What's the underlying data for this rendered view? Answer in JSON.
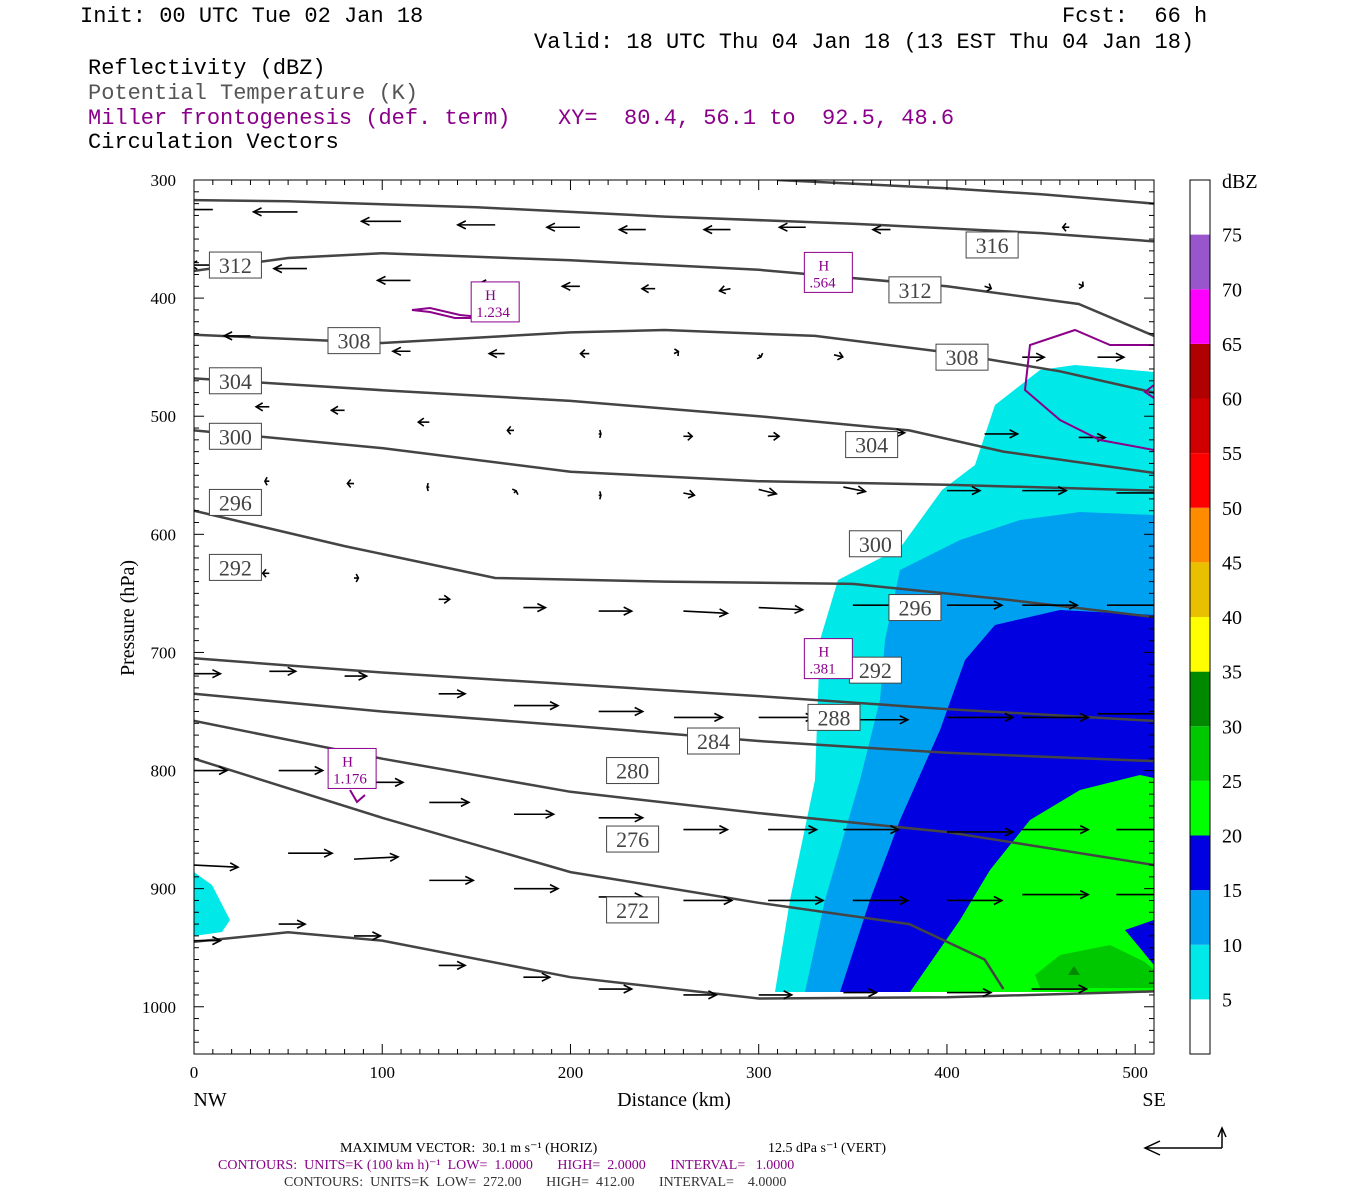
{
  "header": {
    "init": "Init: 00 UTC Tue 02 Jan 18",
    "fcst": "Fcst:  66 h",
    "valid": "Valid: 18 UTC Thu 04 Jan 18 (13 EST Thu 04 Jan 18)",
    "field1": "Reflectivity (dBZ)",
    "field2": "Potential Temperature (K)",
    "field3": "Miller frontogenesis (def. term)",
    "xy": "XY=  80.4, 56.1 to  92.5, 48.6",
    "field4": "Circulation Vectors"
  },
  "colors": {
    "theta": "#444444",
    "fronto": "#8a008a",
    "dbz": [
      "#ffffff",
      "#00e8e8",
      "#00a0f0",
      "#0000e0",
      "#00ff00",
      "#00c800",
      "#008800",
      "#ffff00",
      "#e8c000",
      "#ff8c00",
      "#ff0000",
      "#d00000",
      "#b00000",
      "#ff00ff",
      "#9955cc"
    ]
  },
  "chart_data": {
    "type": "cross-section",
    "xlabel": "Distance (km)",
    "ylabel": "Pressure (hPa)",
    "xlim": [
      0,
      510
    ],
    "ylim": [
      1040,
      300
    ],
    "xticks": [
      0,
      100,
      200,
      300,
      400,
      500
    ],
    "xtick_labels": [
      "0",
      "100",
      "200",
      "300",
      "400",
      "500"
    ],
    "yticks": [
      300,
      400,
      500,
      600,
      700,
      800,
      900,
      1000
    ],
    "ytick_labels": [
      "300",
      "400",
      "500",
      "600",
      "700",
      "800",
      "900",
      "1000"
    ],
    "x_end_labels": {
      "left": "NW",
      "right": "SE"
    },
    "theta_contours": [
      {
        "label": "316",
        "label_at": [
          424,
          355
        ],
        "pts": [
          [
            310,
            300
          ],
          [
            400,
            307
          ],
          [
            450,
            312
          ],
          [
            510,
            320
          ]
        ]
      },
      {
        "label": "312",
        "label_at": [
          22,
          372
        ],
        "pts": [
          [
            0,
            317
          ],
          [
            50,
            318
          ],
          [
            150,
            323
          ],
          [
            250,
            331
          ],
          [
            350,
            337
          ],
          [
            450,
            345
          ],
          [
            510,
            352
          ]
        ]
      },
      {
        "label": "312",
        "label_at": [
          383,
          393
        ],
        "pts": [
          [
            0,
            377
          ],
          [
            50,
            366
          ],
          [
            100,
            362
          ],
          [
            200,
            368
          ],
          [
            300,
            376
          ],
          [
            400,
            390
          ],
          [
            470,
            405
          ],
          [
            510,
            432
          ]
        ]
      },
      {
        "label": "308",
        "label_at": [
          85,
          436
        ],
        "pts": [
          [
            0,
            431
          ],
          [
            100,
            438
          ],
          [
            200,
            429
          ],
          [
            250,
            427
          ],
          [
            330,
            432
          ],
          [
            400,
            446
          ],
          [
            460,
            462
          ],
          [
            510,
            480
          ]
        ]
      },
      {
        "label": "308",
        "label_at": [
          408,
          450
        ],
        "pts": [
          [
            0,
            468
          ],
          [
            100,
            478
          ],
          [
            200,
            487
          ],
          [
            300,
            500
          ],
          [
            380,
            512
          ],
          [
            430,
            530
          ],
          [
            510,
            548
          ]
        ]
      },
      {
        "label": "304",
        "label_at": [
          22,
          470
        ],
        "pts": [
          [
            0,
            512
          ],
          [
            100,
            527
          ],
          [
            200,
            547
          ],
          [
            300,
            555
          ],
          [
            400,
            558
          ],
          [
            510,
            563
          ]
        ]
      },
      {
        "label": "304",
        "label_at": [
          360,
          524
        ],
        "pts": [
          [
            0,
            580
          ],
          [
            80,
            610
          ],
          [
            160,
            637
          ],
          [
            250,
            640
          ],
          [
            350,
            642
          ],
          [
            430,
            655
          ],
          [
            510,
            670
          ]
        ]
      },
      {
        "label": "300",
        "label_at": [
          22,
          517
        ],
        "pts": [
          [
            0,
            705
          ],
          [
            100,
            717
          ],
          [
            200,
            727
          ],
          [
            300,
            737
          ],
          [
            400,
            748
          ],
          [
            510,
            758
          ]
        ]
      },
      {
        "label": "296",
        "label_at": [
          22,
          573
        ],
        "pts": [
          [
            0,
            735
          ],
          [
            100,
            750
          ],
          [
            200,
            762
          ],
          [
            300,
            775
          ],
          [
            400,
            785
          ],
          [
            510,
            792
          ]
        ]
      },
      {
        "label": "292",
        "label_at": [
          22,
          628
        ],
        "pts": [
          [
            0,
            758
          ],
          [
            100,
            790
          ],
          [
            200,
            818
          ],
          [
            300,
            836
          ],
          [
            400,
            852
          ],
          [
            510,
            880
          ]
        ]
      },
      {
        "label": "300",
        "label_at": [
          362,
          608
        ],
        "pts": [
          [
            0,
            790
          ],
          [
            100,
            840
          ],
          [
            200,
            886
          ],
          [
            300,
            912
          ],
          [
            380,
            930
          ],
          [
            420,
            960
          ],
          [
            430,
            985
          ]
        ]
      },
      {
        "label": "296",
        "label_at": [
          383,
          662
        ],
        "pts": [
          [
            0,
            945
          ],
          [
            50,
            937
          ],
          [
            100,
            944
          ],
          [
            200,
            975
          ],
          [
            300,
            993
          ],
          [
            400,
            992
          ],
          [
            510,
            987
          ]
        ]
      },
      {
        "label": "292",
        "label_at": [
          362,
          715
        ],
        "pts": []
      },
      {
        "label": "288",
        "label_at": [
          340,
          755
        ],
        "pts": []
      },
      {
        "label": "284",
        "label_at": [
          276,
          775
        ],
        "pts": []
      },
      {
        "label": "280",
        "label_at": [
          233,
          800
        ],
        "pts": []
      },
      {
        "label": "276",
        "label_at": [
          233,
          858
        ],
        "pts": []
      },
      {
        "label": "272",
        "label_at": [
          233,
          918
        ],
        "pts": []
      }
    ],
    "fronto_maxima": [
      {
        "label": "H",
        "value": "1.234",
        "at": [
          160,
          410
        ]
      },
      {
        "label": "H",
        "value": ".564",
        "at": [
          337,
          385
        ]
      },
      {
        "label": "H",
        "value": ".381",
        "at": [
          337,
          712
        ]
      },
      {
        "label": "H",
        "value": "1.176",
        "at": [
          84,
          805
        ]
      }
    ],
    "dbz_colorbar": {
      "title": "dBZ",
      "levels": [
        "5",
        "10",
        "15",
        "20",
        "25",
        "30",
        "35",
        "40",
        "45",
        "50",
        "55",
        "60",
        "65",
        "70",
        "75"
      ]
    },
    "vectors": [
      {
        "x": 10,
        "p": 325,
        "u": -20,
        "w": 0
      },
      {
        "x": 55,
        "p": 327,
        "u": -20,
        "w": 0
      },
      {
        "x": 110,
        "p": 335,
        "u": -18,
        "w": 0
      },
      {
        "x": 160,
        "p": 338,
        "u": -17,
        "w": 0
      },
      {
        "x": 205,
        "p": 340,
        "u": -15,
        "w": 0
      },
      {
        "x": 240,
        "p": 342,
        "u": -12,
        "w": 0
      },
      {
        "x": 285,
        "p": 342,
        "u": -12,
        "w": 0
      },
      {
        "x": 325,
        "p": 340,
        "u": -12,
        "w": 0
      },
      {
        "x": 370,
        "p": 342,
        "u": -8,
        "w": 0
      },
      {
        "x": 465,
        "p": 340,
        "u": -3,
        "w": 0
      },
      {
        "x": 15,
        "p": 372,
        "u": -15,
        "w": 0
      },
      {
        "x": 60,
        "p": 375,
        "u": -15,
        "w": 0
      },
      {
        "x": 115,
        "p": 385,
        "u": -15,
        "w": 0
      },
      {
        "x": 165,
        "p": 388,
        "u": -12,
        "w": 0
      },
      {
        "x": 205,
        "p": 390,
        "u": -8,
        "w": 0
      },
      {
        "x": 245,
        "p": 392,
        "u": -6,
        "w": 0
      },
      {
        "x": 285,
        "p": 392,
        "u": -5,
        "w": -1
      },
      {
        "x": 420,
        "p": 390,
        "u": 3,
        "w": -1
      },
      {
        "x": 470,
        "p": 388,
        "u": 2,
        "w": -1
      },
      {
        "x": 30,
        "p": 432,
        "u": -12,
        "w": 0
      },
      {
        "x": 115,
        "p": 445,
        "u": -8,
        "w": 0
      },
      {
        "x": 165,
        "p": 447,
        "u": -7,
        "w": 0
      },
      {
        "x": 210,
        "p": 447,
        "u": -4,
        "w": 0
      },
      {
        "x": 255,
        "p": 447,
        "u": 2,
        "w": 1
      },
      {
        "x": 300,
        "p": 448,
        "u": 1,
        "w": -1
      },
      {
        "x": 340,
        "p": 448,
        "u": 4,
        "w": -1
      },
      {
        "x": 440,
        "p": 450,
        "u": 10,
        "w": 0
      },
      {
        "x": 480,
        "p": 450,
        "u": 12,
        "w": 0
      },
      {
        "x": 40,
        "p": 492,
        "u": -6,
        "w": 0
      },
      {
        "x": 80,
        "p": 495,
        "u": -6,
        "w": 0
      },
      {
        "x": 125,
        "p": 505,
        "u": -5,
        "w": 0
      },
      {
        "x": 170,
        "p": 512,
        "u": -3,
        "w": 0
      },
      {
        "x": 215,
        "p": 515,
        "u": 1,
        "w": 0
      },
      {
        "x": 260,
        "p": 517,
        "u": 4,
        "w": 0
      },
      {
        "x": 305,
        "p": 517,
        "u": 5,
        "w": 0
      },
      {
        "x": 360,
        "p": 514,
        "u": 15,
        "w": 0
      },
      {
        "x": 420,
        "p": 515,
        "u": 15,
        "w": 0
      },
      {
        "x": 470,
        "p": 518,
        "u": 12,
        "w": 0
      },
      {
        "x": 40,
        "p": 555,
        "u": -2,
        "w": 0
      },
      {
        "x": 85,
        "p": 557,
        "u": -3,
        "w": 0
      },
      {
        "x": 125,
        "p": 560,
        "u": -1,
        "w": 0
      },
      {
        "x": 170,
        "p": 565,
        "u": 1,
        "w": 1
      },
      {
        "x": 215,
        "p": 567,
        "u": 1,
        "w": 0
      },
      {
        "x": 260,
        "p": 565,
        "u": 5,
        "w": -1
      },
      {
        "x": 300,
        "p": 562,
        "u": 8,
        "w": -2
      },
      {
        "x": 345,
        "p": 560,
        "u": 10,
        "w": -2
      },
      {
        "x": 400,
        "p": 563,
        "u": 15,
        "w": 0
      },
      {
        "x": 440,
        "p": 563,
        "u": 20,
        "w": 0
      },
      {
        "x": 490,
        "p": 565,
        "u": 25,
        "w": 0
      },
      {
        "x": 40,
        "p": 633,
        "u": -3,
        "w": 0
      },
      {
        "x": 85,
        "p": 637,
        "u": 2,
        "w": 0
      },
      {
        "x": 130,
        "p": 655,
        "u": 5,
        "w": 0
      },
      {
        "x": 175,
        "p": 662,
        "u": 10,
        "w": 0
      },
      {
        "x": 215,
        "p": 665,
        "u": 15,
        "w": 0
      },
      {
        "x": 260,
        "p": 665,
        "u": 20,
        "w": -1
      },
      {
        "x": 300,
        "p": 662,
        "u": 20,
        "w": -1
      },
      {
        "x": 350,
        "p": 660,
        "u": 22,
        "w": 0
      },
      {
        "x": 400,
        "p": 660,
        "u": 25,
        "w": 0
      },
      {
        "x": 440,
        "p": 660,
        "u": 25,
        "w": 0
      },
      {
        "x": 485,
        "p": 660,
        "u": 25,
        "w": 0
      },
      {
        "x": 0,
        "p": 718,
        "u": 12,
        "w": 0
      },
      {
        "x": 40,
        "p": 716,
        "u": 12,
        "w": 0
      },
      {
        "x": 80,
        "p": 720,
        "u": 10,
        "w": 0
      },
      {
        "x": 130,
        "p": 735,
        "u": 12,
        "w": 0
      },
      {
        "x": 170,
        "p": 745,
        "u": 20,
        "w": 0
      },
      {
        "x": 215,
        "p": 750,
        "u": 20,
        "w": 0
      },
      {
        "x": 255,
        "p": 755,
        "u": 22,
        "w": 0
      },
      {
        "x": 300,
        "p": 755,
        "u": 25,
        "w": 0
      },
      {
        "x": 350,
        "p": 757,
        "u": 25,
        "w": 0
      },
      {
        "x": 400,
        "p": 755,
        "u": 30,
        "w": 0
      },
      {
        "x": 440,
        "p": 755,
        "u": 30,
        "w": 0
      },
      {
        "x": 480,
        "p": 752,
        "u": 30,
        "w": 0
      },
      {
        "x": 0,
        "p": 800,
        "u": 15,
        "w": 0
      },
      {
        "x": 45,
        "p": 800,
        "u": 20,
        "w": 0
      },
      {
        "x": 90,
        "p": 810,
        "u": 18,
        "w": 0
      },
      {
        "x": 125,
        "p": 827,
        "u": 18,
        "w": 0
      },
      {
        "x": 170,
        "p": 837,
        "u": 18,
        "w": 0
      },
      {
        "x": 215,
        "p": 840,
        "u": 20,
        "w": 0
      },
      {
        "x": 260,
        "p": 850,
        "u": 20,
        "w": 0
      },
      {
        "x": 305,
        "p": 850,
        "u": 22,
        "w": 0
      },
      {
        "x": 345,
        "p": 850,
        "u": 25,
        "w": 0
      },
      {
        "x": 400,
        "p": 852,
        "u": 30,
        "w": 0
      },
      {
        "x": 440,
        "p": 850,
        "u": 30,
        "w": 0
      },
      {
        "x": 490,
        "p": 850,
        "u": 25,
        "w": 0
      },
      {
        "x": 0,
        "p": 880,
        "u": 20,
        "w": -1
      },
      {
        "x": 50,
        "p": 870,
        "u": 20,
        "w": 0
      },
      {
        "x": 85,
        "p": 875,
        "u": 20,
        "w": 1
      },
      {
        "x": 125,
        "p": 893,
        "u": 20,
        "w": 0
      },
      {
        "x": 170,
        "p": 900,
        "u": 20,
        "w": 0
      },
      {
        "x": 215,
        "p": 907,
        "u": 20,
        "w": 0
      },
      {
        "x": 260,
        "p": 910,
        "u": 22,
        "w": 0
      },
      {
        "x": 305,
        "p": 910,
        "u": 25,
        "w": 0
      },
      {
        "x": 350,
        "p": 910,
        "u": 25,
        "w": 0
      },
      {
        "x": 400,
        "p": 910,
        "u": 25,
        "w": 0
      },
      {
        "x": 440,
        "p": 905,
        "u": 30,
        "w": 0
      },
      {
        "x": 490,
        "p": 905,
        "u": 25,
        "w": 0
      },
      {
        "x": 0,
        "p": 944,
        "u": 12,
        "w": 0
      },
      {
        "x": 45,
        "p": 930,
        "u": 12,
        "w": 0
      },
      {
        "x": 85,
        "p": 940,
        "u": 12,
        "w": 0
      },
      {
        "x": 130,
        "p": 965,
        "u": 12,
        "w": 0
      },
      {
        "x": 175,
        "p": 975,
        "u": 12,
        "w": 0
      },
      {
        "x": 215,
        "p": 985,
        "u": 15,
        "w": 0
      },
      {
        "x": 260,
        "p": 990,
        "u": 15,
        "w": 0
      },
      {
        "x": 300,
        "p": 990,
        "u": 15,
        "w": 0
      },
      {
        "x": 345,
        "p": 988,
        "u": 15,
        "w": 0
      },
      {
        "x": 400,
        "p": 988,
        "u": 20,
        "w": 0
      },
      {
        "x": 445,
        "p": 985,
        "u": 25,
        "w": 0
      }
    ]
  },
  "footer": {
    "maxvec": "MAXIMUM VECTOR:  30.1 m s⁻¹ (HORIZ)",
    "maxvec_vert": "12.5 dPa s⁻¹ (VERT)",
    "contours1": "CONTOURS:  UNITS=K (100 km h)⁻¹  LOW=  1.0000       HIGH=  2.0000       INTERVAL=   1.0000",
    "contours2": "CONTOURS:  UNITS=K  LOW=  272.00       HIGH=  412.00       INTERVAL=    4.0000"
  }
}
